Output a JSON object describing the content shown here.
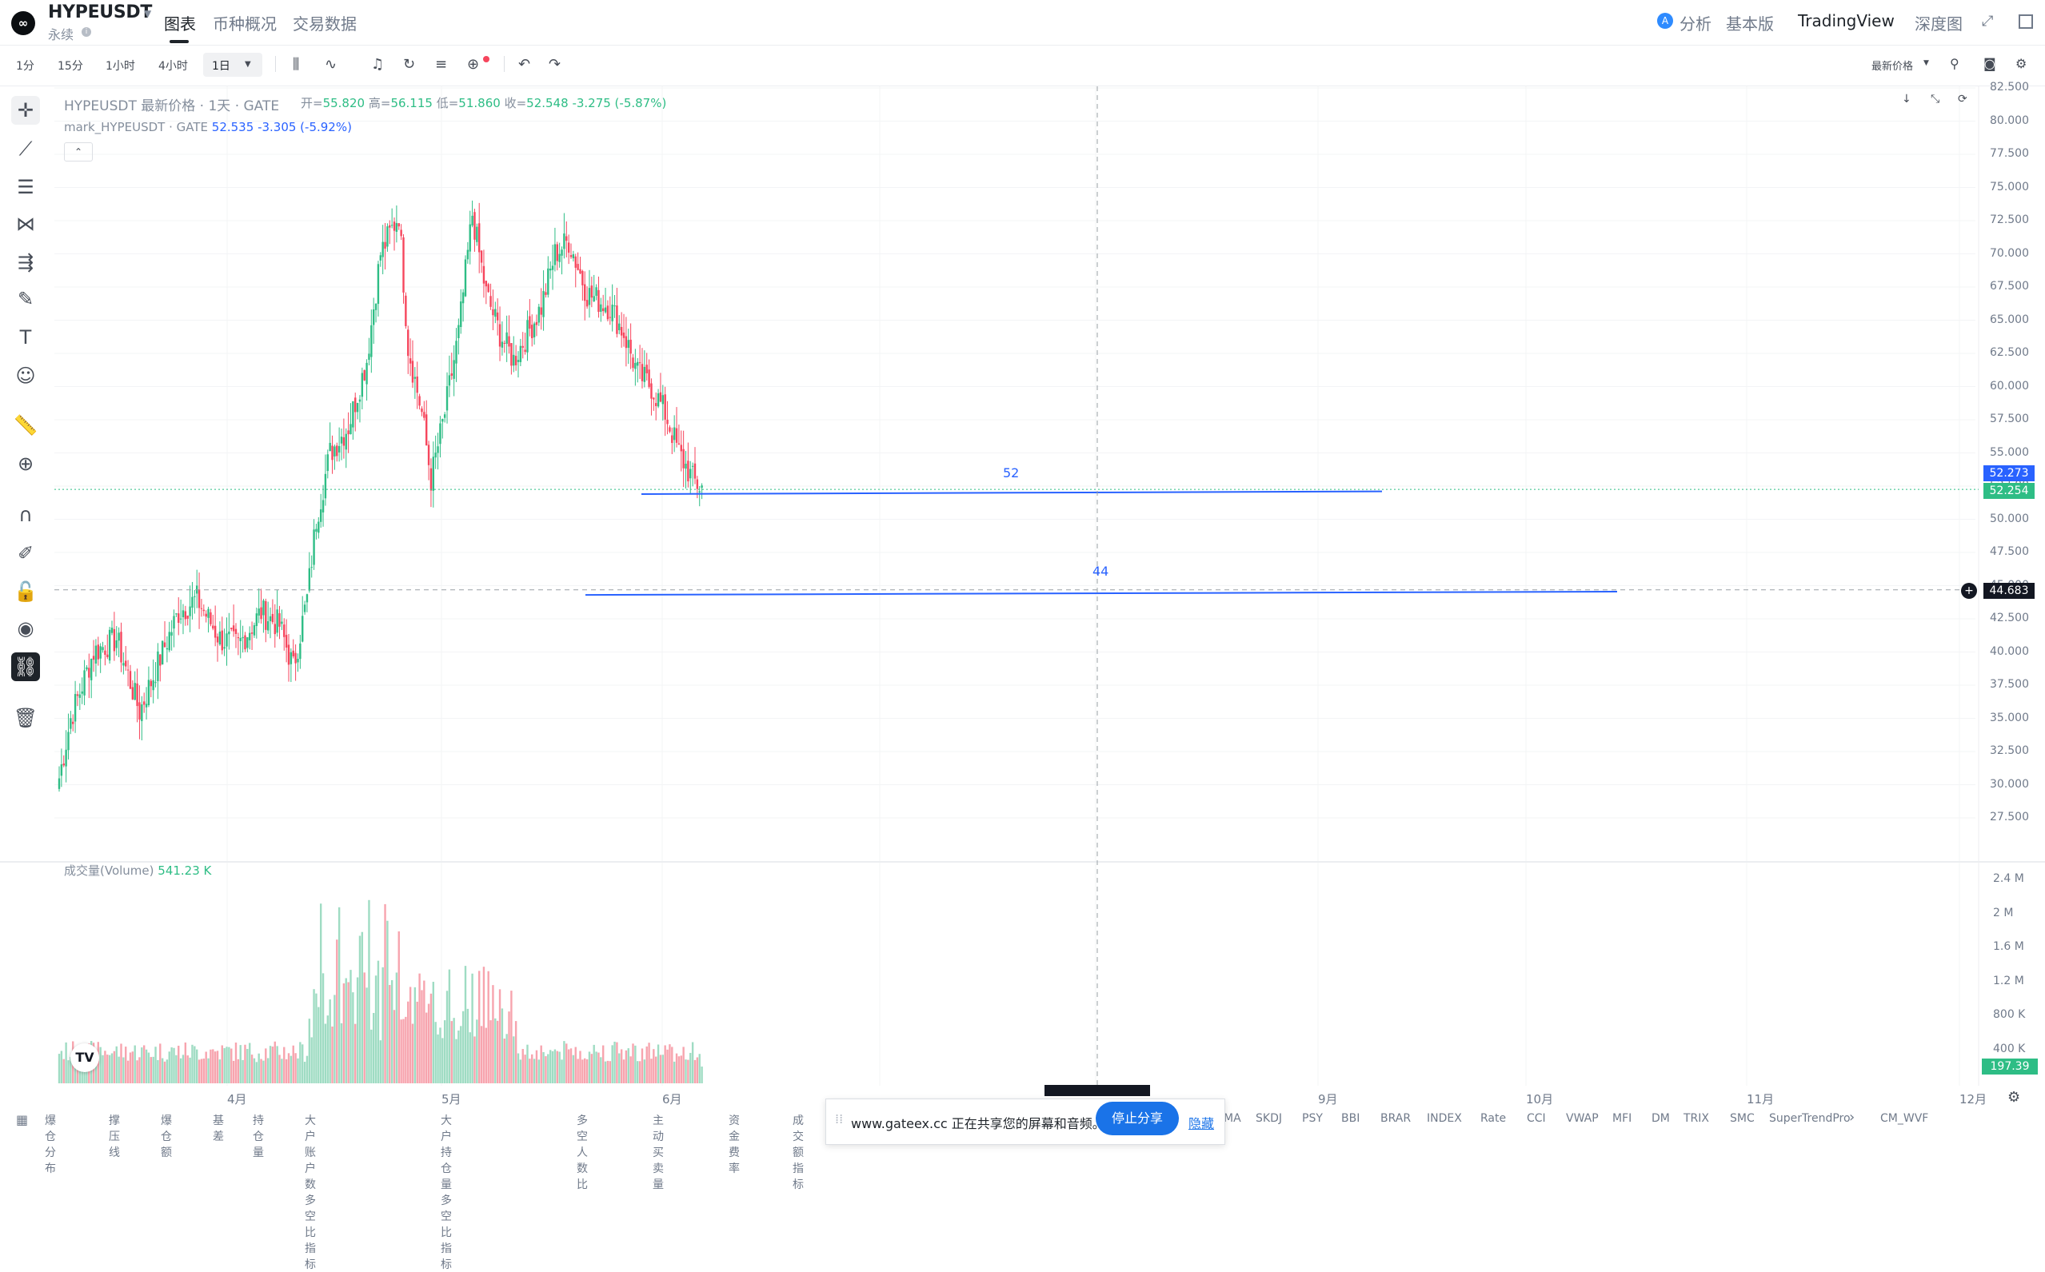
{
  "header": {
    "symbol": "HYPEUSDT",
    "contract_type": "永续",
    "tabs": [
      {
        "label": "图表",
        "active": true
      },
      {
        "label": "币种概况",
        "active": false
      },
      {
        "label": "交易数据",
        "active": false
      }
    ],
    "analysis_label": "分析",
    "basic_label": "基本版",
    "tradingview_label": "TradingView",
    "depth_label": "深度图"
  },
  "toolbar": {
    "timeframes": [
      "1分",
      "15分",
      "1小时",
      "4小时",
      "1日"
    ],
    "active_timeframe": "1日",
    "price_type": "最新价格"
  },
  "chart": {
    "legend_title": "HYPEUSDT 最新价格 · 1天 · GATE",
    "open_label": "开=",
    "open": "55.820",
    "high_label": "高=",
    "high": "56.115",
    "low_label": "低=",
    "low": "51.860",
    "close_label": "收=",
    "close": "52.548",
    "change": "-3.275 (-5.87%)",
    "mark_label": "mark_HYPEUSDT · GATE",
    "mark_value": "52.535",
    "mark_change": "-3.305 (-5.92%)",
    "price_axis": [
      "82.500",
      "80.000",
      "77.500",
      "75.000",
      "72.500",
      "70.000",
      "67.500",
      "65.000",
      "62.500",
      "60.000",
      "57.500",
      "55.000",
      "52.500",
      "50.000",
      "47.500",
      "45.000",
      "42.500",
      "40.000",
      "37.500",
      "35.000",
      "32.500",
      "30.000",
      "27.500"
    ],
    "tag_mark": "52.273",
    "tag_last": "52.254",
    "tag_crosshair": "44.683",
    "hline_labels": [
      "52",
      "44"
    ],
    "volume_label": "成交量(Volume)",
    "volume_value": "541.23 K",
    "volume_axis": [
      "2.4 M",
      "2 M",
      "1.6 M",
      "1.2 M",
      "800 K",
      "400 K"
    ],
    "volume_tag": "197.39 K",
    "x_axis": [
      "4月",
      "5月",
      "6月",
      "9月",
      "10月",
      "11月",
      "12月"
    ],
    "colors": {
      "up": "#2ebd85",
      "down": "#f6465d",
      "line": "#2962ff"
    }
  },
  "bottom": {
    "indicators_left": [
      "爆仓分布",
      "撑压线",
      "爆仓额",
      "基差",
      "持仓量",
      "大户账户数多空比指标",
      "大户持仓量多空比指标",
      "多空人数比",
      "主动买卖量",
      "资金费率",
      "成交额指标"
    ],
    "indicators_right": [
      "MA",
      "SKDJ",
      "PSY",
      "BBI",
      "BRAR",
      "INDEX",
      "Rate",
      "CCI",
      "VWAP",
      "MFI",
      "DM",
      "TRIX",
      "SMC",
      "SuperTrendPro",
      "CM_WVF"
    ]
  },
  "share_bar": {
    "message": "www.gateex.cc 正在共享您的屏幕和音频。",
    "stop_label": "停止分享",
    "hide_label": "隐藏"
  }
}
